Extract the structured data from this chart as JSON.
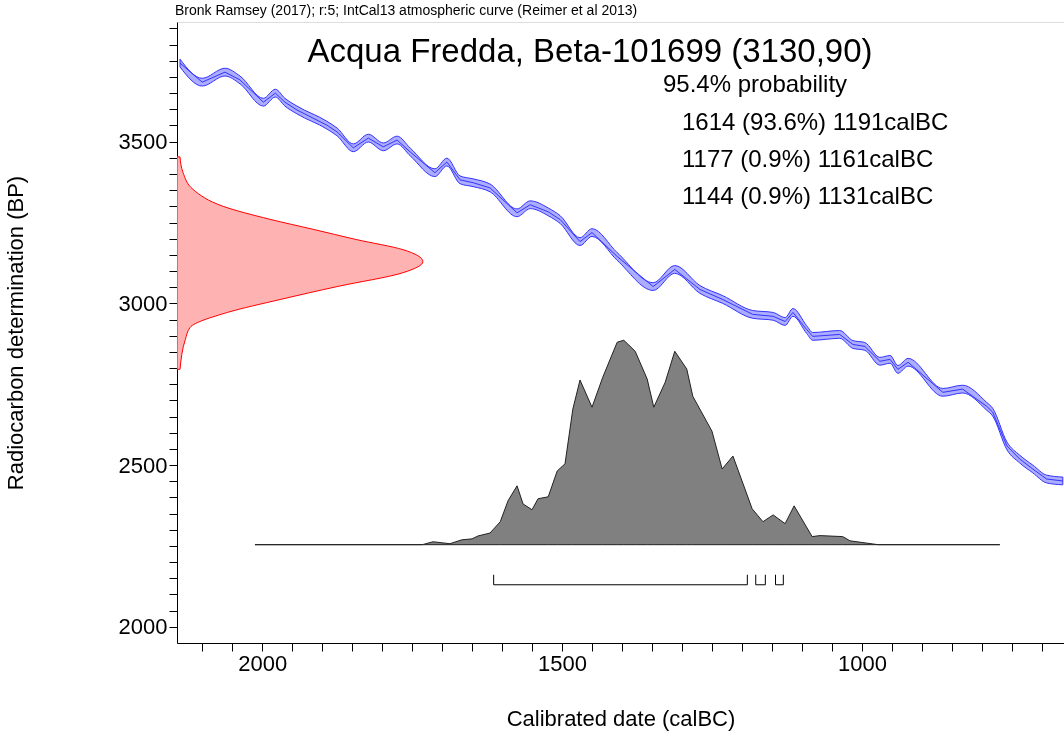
{
  "chart_data": {
    "type": "line",
    "title": "Acqua Fredda, Beta-101699 (3130,90)",
    "subtitle": "Bronk Ramsey (2017); r:5; IntCal13 atmospheric curve (Reimer et al 2013)",
    "xlabel": "Calibrated date (calBC)",
    "ylabel": "Radiocarbon determination (BP)",
    "annotations": [
      "95.4% probability",
      "1614 (93.6%) 1191calBC",
      "1177 (0.9%) 1161calBC",
      "1144 (0.9%) 1131calBC"
    ],
    "xlim": [
      2142,
      663
    ],
    "ylim": [
      1950,
      3870
    ],
    "xticks": [
      {
        "value": 2100,
        "label": null
      },
      {
        "value": 2050,
        "label": null
      },
      2000,
      {
        "value": 1950,
        "label": null
      },
      {
        "value": 1900,
        "label": null
      },
      {
        "value": 1850,
        "label": null
      },
      {
        "value": 1800,
        "label": null
      },
      {
        "value": 1750,
        "label": null
      },
      {
        "value": 1700,
        "label": null
      },
      {
        "value": 1650,
        "label": null
      },
      {
        "value": 1600,
        "label": null
      },
      {
        "value": 1550,
        "label": null
      },
      1500,
      {
        "value": 1450,
        "label": null
      },
      {
        "value": 1400,
        "label": null
      },
      {
        "value": 1350,
        "label": null
      },
      {
        "value": 1300,
        "label": null
      },
      {
        "value": 1250,
        "label": null
      },
      {
        "value": 1200,
        "label": null
      },
      {
        "value": 1150,
        "label": null
      },
      {
        "value": 1100,
        "label": null
      },
      {
        "value": 1050,
        "label": null
      },
      1000,
      {
        "value": 950,
        "label": null
      },
      {
        "value": 900,
        "label": null
      },
      {
        "value": 850,
        "label": null
      },
      {
        "value": 800,
        "label": null
      },
      {
        "value": 750,
        "label": null
      },
      {
        "value": 700,
        "label": null
      }
    ],
    "yticks": [
      2000,
      {
        "value": 2050,
        "label": null
      },
      {
        "value": 2100,
        "label": null
      },
      {
        "value": 2150,
        "label": null
      },
      {
        "value": 2200,
        "label": null
      },
      {
        "value": 2250,
        "label": null
      },
      {
        "value": 2300,
        "label": null
      },
      {
        "value": 2350,
        "label": null
      },
      {
        "value": 2400,
        "label": null
      },
      {
        "value": 2450,
        "label": null
      },
      2500,
      {
        "value": 2550,
        "label": null
      },
      {
        "value": 2600,
        "label": null
      },
      {
        "value": 2650,
        "label": null
      },
      {
        "value": 2700,
        "label": null
      },
      {
        "value": 2750,
        "label": null
      },
      {
        "value": 2800,
        "label": null
      },
      {
        "value": 2850,
        "label": null
      },
      {
        "value": 2900,
        "label": null
      },
      {
        "value": 2950,
        "label": null
      },
      3000,
      {
        "value": 3050,
        "label": null
      },
      {
        "value": 3100,
        "label": null
      },
      {
        "value": 3150,
        "label": null
      },
      {
        "value": 3200,
        "label": null
      },
      {
        "value": 3250,
        "label": null
      },
      {
        "value": 3300,
        "label": null
      },
      {
        "value": 3350,
        "label": null
      },
      {
        "value": 3400,
        "label": null
      },
      {
        "value": 3450,
        "label": null
      },
      3500,
      {
        "value": 3550,
        "label": null
      },
      {
        "value": 3600,
        "label": null
      },
      {
        "value": 3650,
        "label": null
      },
      {
        "value": 3700,
        "label": null
      },
      {
        "value": 3750,
        "label": null
      },
      {
        "value": 3800,
        "label": null
      },
      {
        "value": 3850,
        "label": null
      }
    ],
    "grid": false,
    "series": [
      {
        "color": "#3333ff",
        "x": [
          2137,
          2100,
          2062,
          2037,
          1998,
          1978,
          1962,
          1942,
          1892,
          1875,
          1848,
          1823,
          1798,
          1775,
          1753,
          1712,
          1692,
          1670,
          1648,
          1620,
          1575,
          1553,
          1523,
          1503,
          1470,
          1450,
          1408,
          1348,
          1312,
          1270,
          1232,
          1182,
          1148,
          1128,
          1115,
          1092,
          1082,
          1037,
          1015,
          995,
          970,
          953,
          940,
          923,
          865,
          832,
          792,
          782,
          758,
          737,
          715,
          692,
          665
        ],
        "values": [
          3743,
          3684,
          3715,
          3691,
          3622,
          3650,
          3622,
          3598,
          3551,
          3530,
          3481,
          3511,
          3484,
          3505,
          3468,
          3404,
          3437,
          3382,
          3373,
          3357,
          3280,
          3305,
          3283,
          3259,
          3191,
          3219,
          3145,
          3052,
          3105,
          3043,
          3012,
          2966,
          2960,
          2944,
          2972,
          2919,
          2898,
          2904,
          2873,
          2867,
          2821,
          2827,
          2796,
          2818,
          2725,
          2735,
          2682,
          2664,
          2559,
          2519,
          2488,
          2457,
          2451
        ],
        "lower": [
          3731,
          3672,
          3703,
          3679,
          3610,
          3638,
          3610,
          3586,
          3539,
          3518,
          3469,
          3499,
          3472,
          3493,
          3456,
          3392,
          3425,
          3370,
          3361,
          3345,
          3268,
          3293,
          3271,
          3247,
          3179,
          3207,
          3133,
          3040,
          3093,
          3031,
          3000,
          2954,
          2948,
          2932,
          2960,
          2907,
          2886,
          2892,
          2861,
          2855,
          2809,
          2815,
          2784,
          2806,
          2713,
          2723,
          2670,
          2652,
          2547,
          2507,
          2476,
          2445,
          2439
        ],
        "upper": [
          3755,
          3696,
          3727,
          3703,
          3634,
          3662,
          3634,
          3610,
          3563,
          3542,
          3493,
          3523,
          3496,
          3517,
          3480,
          3416,
          3449,
          3394,
          3385,
          3369,
          3292,
          3317,
          3295,
          3271,
          3203,
          3231,
          3157,
          3064,
          3117,
          3055,
          3024,
          2978,
          2972,
          2956,
          2984,
          2931,
          2910,
          2916,
          2885,
          2879,
          2833,
          2839,
          2808,
          2830,
          2737,
          2747,
          2694,
          2676,
          2571,
          2531,
          2500,
          2469,
          2463
        ]
      },
      {
        "type": "area",
        "color": "#ff0000",
        "x": [
          2137,
          2132,
          2115,
          2065,
          1987,
          1915,
          1842,
          1765,
          1732,
          1765,
          1875,
          1970,
          2058,
          2120,
          2128,
          2137
        ],
        "values": [
          3453,
          3405,
          3352,
          3300,
          3260,
          3229,
          3197,
          3166,
          3129,
          3095,
          3052,
          3012,
          2972,
          2926,
          2889,
          2796
        ]
      },
      {
        "type": "area",
        "color": "#808080",
        "x": [
          2012,
          1733,
          1715,
          1687,
          1667,
          1650,
          1640,
          1620,
          1603,
          1590,
          1575,
          1565,
          1550,
          1540,
          1523,
          1508,
          1495,
          1482,
          1470,
          1450,
          1432,
          1408,
          1397,
          1378,
          1358,
          1347,
          1328,
          1312,
          1292,
          1282,
          1250,
          1233,
          1215,
          1183,
          1165,
          1148,
          1128,
          1113,
          1083,
          1070,
          1032,
          1020,
          973,
          770
        ],
        "values": [
          2254,
          2254,
          2263,
          2257,
          2269,
          2272,
          2281,
          2290,
          2325,
          2390,
          2436,
          2380,
          2362,
          2396,
          2402,
          2482,
          2504,
          2673,
          2763,
          2679,
          2772,
          2880,
          2886,
          2852,
          2766,
          2679,
          2756,
          2852,
          2797,
          2713,
          2605,
          2488,
          2528,
          2365,
          2325,
          2346,
          2319,
          2374,
          2279,
          2282,
          2279,
          2266,
          2254,
          2254
        ]
      },
      {
        "color": "#000000",
        "x": [
          1614,
          1614,
          1191,
          1191
        ],
        "values": [
          2161,
          2130,
          2130,
          2161
        ]
      },
      {
        "color": "#000000",
        "x": [
          1177,
          1177,
          1161,
          1161
        ],
        "values": [
          2161,
          2130,
          2130,
          2161
        ]
      },
      {
        "color": "#000000",
        "x": [
          1144,
          1144,
          1131,
          1131
        ],
        "values": [
          2161,
          2130,
          2130,
          2161
        ]
      }
    ]
  }
}
